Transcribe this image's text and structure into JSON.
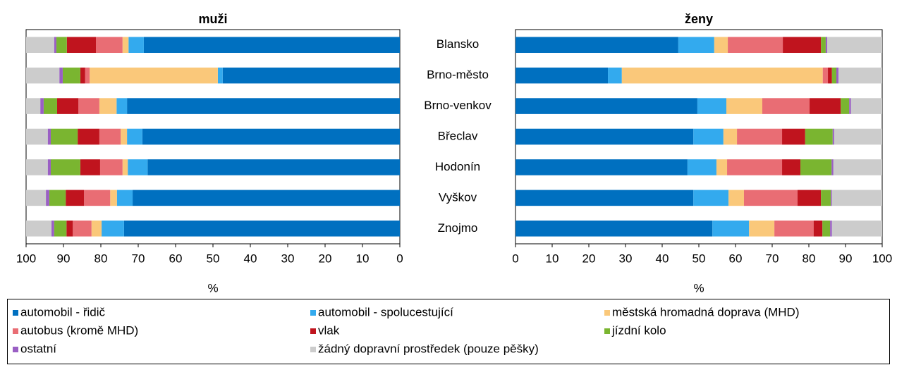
{
  "chart_data": [
    {
      "type": "stacked_bar_horizontal",
      "title": "muži",
      "x_label": "%",
      "categories": [
        null,
        null,
        null,
        null,
        null,
        null,
        null
      ],
      "xlim": [
        100,
        0
      ],
      "xticks": [
        100,
        90,
        80,
        70,
        60,
        50,
        40,
        30,
        20,
        10,
        0
      ],
      "series": [
        {
          "name": "automobil - řidič",
          "color": "#0070c0",
          "values": [
            68.5,
            47.4,
            73.0,
            68.9,
            67.5,
            71.5,
            73.8
          ]
        },
        {
          "name": "automobil - spolucestující",
          "color": "#33aaee",
          "values": [
            4.1,
            1.3,
            2.8,
            4.1,
            5.3,
            4.2,
            6.0
          ]
        },
        {
          "name": "městská hromadná doprava (MHD)",
          "color": "#fac87a",
          "values": [
            1.6,
            34.3,
            4.6,
            1.7,
            1.4,
            1.8,
            2.7
          ]
        },
        {
          "name": "autobus (kromě MHD)",
          "color": "#e96d74",
          "values": [
            7.1,
            1.2,
            5.6,
            5.7,
            6.0,
            7.0,
            5.0
          ]
        },
        {
          "name": "vlak",
          "color": "#c0141e",
          "values": [
            7.8,
            1.3,
            5.7,
            5.8,
            5.3,
            4.9,
            1.7
          ]
        },
        {
          "name": "jízdní kolo",
          "color": "#7ab530",
          "values": [
            2.8,
            4.7,
            3.6,
            7.2,
            7.9,
            4.4,
            3.3
          ]
        },
        {
          "name": "ostatní",
          "color": "#9a5fc4",
          "values": [
            0.6,
            0.9,
            0.9,
            0.8,
            0.8,
            0.9,
            0.7
          ]
        },
        {
          "name": "žádný dopravní prostředek (pouze pěšky)",
          "color": "#cccccc",
          "values": [
            7.5,
            8.9,
            3.8,
            5.8,
            5.8,
            5.3,
            6.8
          ]
        }
      ]
    },
    {
      "type": "stacked_bar_horizontal",
      "title": "ženy",
      "x_label": "%",
      "categories": [
        "Blansko",
        "Brno-město",
        "Brno-venkov",
        "Břeclav",
        "Hodonín",
        "Vyškov",
        "Znojmo"
      ],
      "xlim": [
        0,
        100
      ],
      "xticks": [
        0,
        10,
        20,
        30,
        40,
        50,
        60,
        70,
        80,
        90,
        100
      ],
      "series": [
        {
          "name": null,
          "color": "#0070c0",
          "values": [
            44.4,
            25.2,
            49.6,
            48.5,
            46.9,
            48.5,
            53.7
          ]
        },
        {
          "name": null,
          "color": "#33aaee",
          "values": [
            9.8,
            3.8,
            7.9,
            8.2,
            7.9,
            9.6,
            10.0
          ]
        },
        {
          "name": null,
          "color": "#fac87a",
          "values": [
            3.7,
            54.8,
            9.8,
            3.7,
            2.9,
            4.2,
            6.9
          ]
        },
        {
          "name": null,
          "color": "#e96d74",
          "values": [
            15.0,
            1.4,
            12.9,
            12.3,
            15.0,
            14.6,
            10.7
          ]
        },
        {
          "name": null,
          "color": "#c0141e",
          "values": [
            10.4,
            1.1,
            8.5,
            6.3,
            5.0,
            6.4,
            2.4
          ]
        },
        {
          "name": null,
          "color": "#7ab530",
          "values": [
            1.3,
            1.2,
            2.3,
            7.5,
            8.5,
            2.7,
            2.1
          ]
        },
        {
          "name": null,
          "color": "#9a5fc4",
          "values": [
            0.4,
            0.6,
            0.5,
            0.4,
            0.5,
            0.3,
            0.5
          ]
        },
        {
          "name": null,
          "color": "#cccccc",
          "values": [
            15.0,
            11.9,
            8.5,
            13.1,
            13.3,
            13.7,
            13.7
          ]
        }
      ]
    }
  ]
}
